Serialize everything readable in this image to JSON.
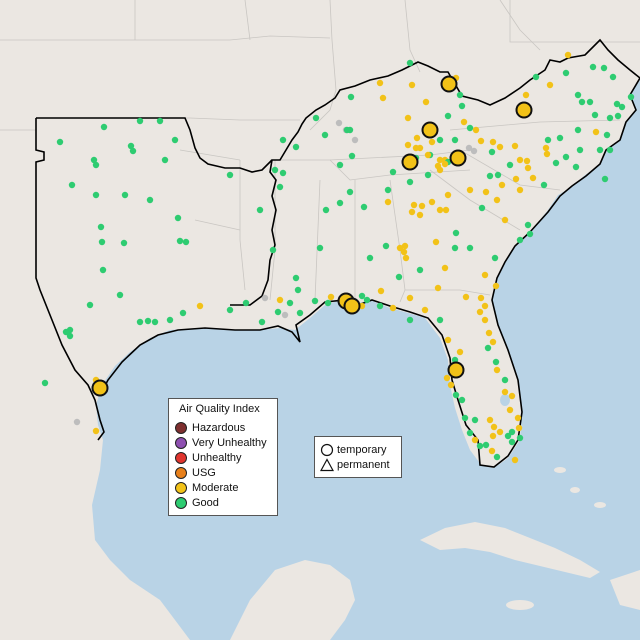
{
  "map": {
    "land_color": "#ebe7e2",
    "water_color": "#b9d3e6",
    "states_line_color": "#c9c6c2",
    "region_outline_color": "#000000"
  },
  "legend": {
    "title": "Air Quality Index",
    "categories": [
      {
        "label": "Hazardous",
        "color": "#7e2f2f"
      },
      {
        "label": "Very Unhealthy",
        "color": "#8e4fb0"
      },
      {
        "label": "Unhealthy",
        "color": "#e0342e"
      },
      {
        "label": "USG",
        "color": "#e8801b"
      },
      {
        "label": "Moderate",
        "color": "#f2c218"
      },
      {
        "label": "Good",
        "color": "#2ecc71"
      }
    ]
  },
  "monitor_type_legend": {
    "items": [
      {
        "label": "temporary",
        "shape": "circle-icon"
      },
      {
        "label": "permanent",
        "shape": "triangle-icon"
      }
    ]
  }
}
